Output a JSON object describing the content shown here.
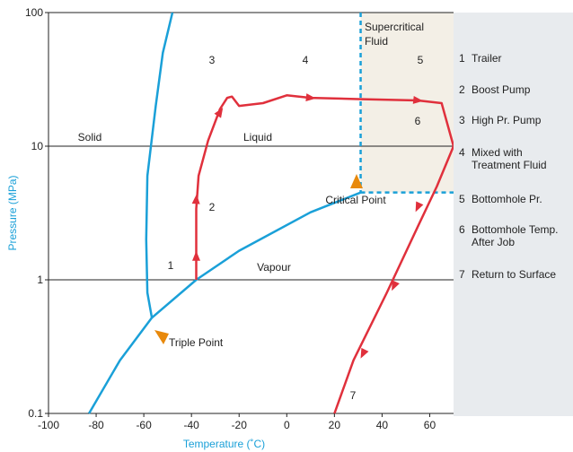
{
  "chart_data": {
    "type": "line",
    "xlabel": "Temperature (˚C)",
    "ylabel": "Pressure (MPa)",
    "xlim": [
      -100,
      70
    ],
    "ylim": [
      0.1,
      100
    ],
    "yscale": "log",
    "x_ticks": [
      "-100",
      "-80",
      "-60",
      "-40",
      "-20",
      "0",
      "20",
      "40",
      "60"
    ],
    "y_ticks": [
      "0.1",
      "1",
      "10",
      "100"
    ],
    "y_tick_values": [
      0.1,
      1,
      10,
      100
    ],
    "x_tick_values": [
      -100,
      -80,
      -60,
      -40,
      -20,
      0,
      20,
      40,
      60
    ],
    "grid": "horizontal lines at 1, 10, 100",
    "colors": {
      "phase_boundary": "#1aa0d8",
      "path": "#e0303c",
      "marker": "#e8890c",
      "supercritical_fill": "#f3efe6",
      "legend_bg": "#e8ebee"
    },
    "phase_boundaries": {
      "sublimation": [
        [
          -83,
          0.1
        ],
        [
          -70,
          0.25
        ],
        [
          -56.6,
          0.52
        ]
      ],
      "vaporization": [
        [
          -56.6,
          0.52
        ],
        [
          -38,
          1.0
        ],
        [
          -20,
          1.65
        ],
        [
          10,
          3.2
        ],
        [
          31,
          4.5
        ]
      ],
      "melting": [
        [
          -56.6,
          0.52
        ],
        [
          -58.5,
          0.8
        ],
        [
          -59,
          2.0
        ],
        [
          -58.5,
          6.0
        ],
        [
          -55,
          20
        ],
        [
          -52,
          50
        ],
        [
          -48,
          100
        ]
      ]
    },
    "critical_region_bound": {
      "x": 31,
      "y": 4.5
    },
    "process_path": [
      [
        -38,
        1.0
      ],
      [
        -38,
        1.9
      ],
      [
        -38,
        3.4
      ],
      [
        -37,
        6.0
      ],
      [
        -33,
        11
      ],
      [
        -28,
        19
      ],
      [
        -25,
        23
      ],
      [
        -23,
        23.5
      ],
      [
        -20,
        20
      ],
      [
        -10,
        21
      ],
      [
        0,
        24
      ],
      [
        10,
        23
      ],
      [
        30,
        22.5
      ],
      [
        55,
        22
      ],
      [
        65,
        21
      ],
      [
        70,
        10
      ],
      [
        63,
        5
      ],
      [
        55,
        2.5
      ],
      [
        42,
        0.8
      ],
      [
        28,
        0.25
      ],
      [
        20,
        0.1
      ]
    ],
    "arrows": [
      [
        -38,
        1.5
      ],
      [
        -38,
        4.0
      ],
      [
        -28,
        18
      ],
      [
        10,
        23
      ],
      [
        55,
        22
      ],
      [
        55,
        3.5
      ],
      [
        45,
        0.9
      ],
      [
        32,
        0.28
      ]
    ],
    "regions": [
      "Solid",
      "Liquid",
      "Vapour"
    ],
    "supercritical_label": "Supercritical\nFluid",
    "annotations": [
      {
        "text": "Triple Point",
        "x": -56.6,
        "y": 0.52
      },
      {
        "text": "Critical Point",
        "x": 31,
        "y": 4.5
      }
    ],
    "point_labels": [
      "1",
      "2",
      "3",
      "4",
      "5",
      "6",
      "7"
    ],
    "legend": [
      {
        "num": "1",
        "text": "Trailer"
      },
      {
        "num": "2",
        "text": "Boost Pump"
      },
      {
        "num": "3",
        "text": "High Pr. Pump"
      },
      {
        "num": "4",
        "text": "Mixed with Treatment Fluid"
      },
      {
        "num": "5",
        "text": "Bottomhole Pr."
      },
      {
        "num": "6",
        "text": "Bottomhole Temp. After Job"
      },
      {
        "num": "7",
        "text": "Return to Surface"
      }
    ],
    "legend_placement": "right"
  }
}
